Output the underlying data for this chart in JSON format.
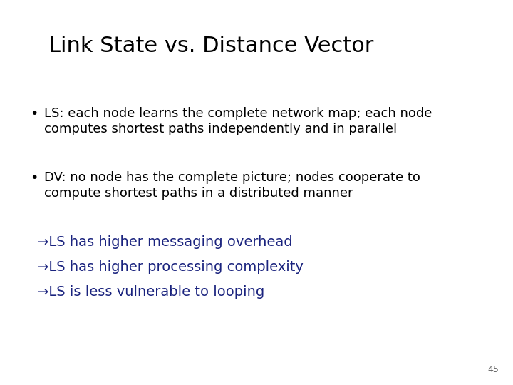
{
  "title": "Link State vs. Distance Vector",
  "title_fontsize": 22,
  "title_color": "#000000",
  "background_color": "#ffffff",
  "bullet1_line1": "LS: each node learns the complete network map; each node",
  "bullet1_line2": "computes shortest paths independently and in parallel",
  "bullet2_line1": "DV: no node has the complete picture; nodes cooperate to",
  "bullet2_line2": "compute shortest paths in a distributed manner",
  "arrow1": "→LS has higher messaging overhead",
  "arrow2": "→LS has higher processing complexity",
  "arrow3": "→LS is less vulnerable to looping",
  "bullet_color": "#000000",
  "arrow_color": "#1a237e",
  "bullet_fontsize": 13,
  "arrow_fontsize": 14,
  "page_number": "45",
  "page_number_fontsize": 9,
  "page_number_color": "#666666"
}
